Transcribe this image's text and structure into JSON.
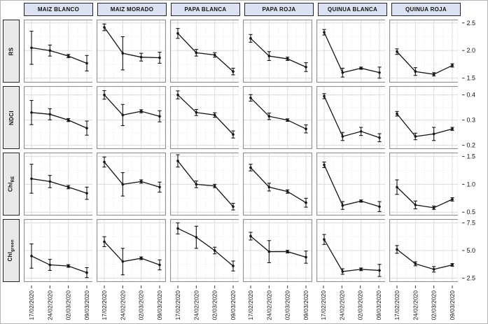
{
  "chart_data": {
    "type": "line",
    "description": "Faceted grid of vegetation index time series with error bars per crop",
    "facet_columns": [
      "MAIZ BLANCO",
      "MAIZ MORADO",
      "PAPA BLANCA",
      "PAPA ROJA",
      "QUINUA BLANCA",
      "QUINUA ROJA"
    ],
    "x_categories": [
      "17/02/2020",
      "24/02/2020",
      "02/03/2020",
      "09/03/2020"
    ],
    "legend": "none",
    "grid": "on",
    "facet_rows": [
      {
        "label": "RS",
        "label_sub": "",
        "y_ticks": [
          "1.5",
          "2.0",
          "2.5"
        ],
        "ylim": [
          1.42,
          2.56
        ],
        "panels": [
          {
            "column": "MAIZ BLANCO",
            "means": [
              2.05,
              2.0,
              1.9,
              1.77
            ],
            "errors": [
              0.3,
              0.1,
              0.03,
              0.14
            ]
          },
          {
            "column": "MAIZ MORADO",
            "means": [
              2.42,
              1.95,
              1.88,
              1.87
            ],
            "errors": [
              0.06,
              0.3,
              0.07,
              0.1
            ]
          },
          {
            "column": "PAPA BLANCA",
            "means": [
              2.31,
              1.96,
              1.92,
              1.62
            ],
            "errors": [
              0.09,
              0.06,
              0.04,
              0.06
            ]
          },
          {
            "column": "PAPA ROJA",
            "means": [
              2.22,
              1.9,
              1.85,
              1.7
            ],
            "errors": [
              0.07,
              0.08,
              0.03,
              0.08
            ]
          },
          {
            "column": "QUINUA BLANCA",
            "means": [
              2.33,
              1.6,
              1.68,
              1.6
            ],
            "errors": [
              0.05,
              0.08,
              0.02,
              0.1
            ]
          },
          {
            "column": "QUINUA ROJA",
            "means": [
              1.98,
              1.62,
              1.57,
              1.73
            ],
            "errors": [
              0.05,
              0.07,
              0.03,
              0.03
            ]
          }
        ]
      },
      {
        "label": "NDCI",
        "label_sub": "",
        "y_ticks": [
          "0.2",
          "0.3",
          "0.4"
        ],
        "ylim": [
          0.185,
          0.435
        ],
        "panels": [
          {
            "column": "MAIZ BLANCO",
            "means": [
              0.33,
              0.323,
              0.3,
              0.268
            ],
            "errors": [
              0.048,
              0.022,
              0.006,
              0.028
            ]
          },
          {
            "column": "MAIZ MORADO",
            "means": [
              0.4,
              0.32,
              0.335,
              0.315
            ],
            "errors": [
              0.017,
              0.042,
              0.006,
              0.022
            ]
          },
          {
            "column": "PAPA BLANCA",
            "means": [
              0.4,
              0.33,
              0.32,
              0.243
            ],
            "errors": [
              0.016,
              0.012,
              0.009,
              0.014
            ]
          },
          {
            "column": "PAPA ROJA",
            "means": [
              0.388,
              0.315,
              0.3,
              0.265
            ],
            "errors": [
              0.013,
              0.013,
              0.005,
              0.016
            ]
          },
          {
            "column": "QUINUA BLANCA",
            "means": [
              0.395,
              0.235,
              0.255,
              0.23
            ],
            "errors": [
              0.01,
              0.016,
              0.016,
              0.016
            ]
          },
          {
            "column": "QUINUA ROJA",
            "means": [
              0.325,
              0.235,
              0.245,
              0.265
            ],
            "errors": [
              0.009,
              0.013,
              0.026,
              0.006
            ]
          }
        ]
      },
      {
        "label": "Chl",
        "label_sub": "RE",
        "y_ticks": [
          "0.5",
          "1.0",
          "1.5"
        ],
        "ylim": [
          0.44,
          1.57
        ],
        "panels": [
          {
            "column": "MAIZ BLANCO",
            "means": [
              1.1,
              1.05,
              0.95,
              0.84
            ],
            "errors": [
              0.26,
              0.11,
              0.03,
              0.11
            ]
          },
          {
            "column": "MAIZ MORADO",
            "means": [
              1.4,
              1.0,
              1.05,
              0.95
            ],
            "errors": [
              0.09,
              0.21,
              0.03,
              0.09
            ]
          },
          {
            "column": "PAPA BLANCA",
            "means": [
              1.42,
              1.0,
              0.97,
              0.6
            ],
            "errors": [
              0.11,
              0.06,
              0.03,
              0.06
            ]
          },
          {
            "column": "PAPA ROJA",
            "means": [
              1.3,
              0.95,
              0.87,
              0.67
            ],
            "errors": [
              0.06,
              0.07,
              0.03,
              0.08
            ]
          },
          {
            "column": "QUINUA BLANCA",
            "means": [
              1.35,
              0.62,
              0.7,
              0.6
            ],
            "errors": [
              0.05,
              0.07,
              0.02,
              0.09
            ]
          },
          {
            "column": "QUINUA ROJA",
            "means": [
              0.95,
              0.63,
              0.58,
              0.73
            ],
            "errors": [
              0.13,
              0.07,
              0.03,
              0.03
            ]
          }
        ]
      },
      {
        "label": "Chl",
        "label_sub": "green",
        "y_ticks": [
          "2.5",
          "5.0",
          "7.5"
        ],
        "ylim": [
          2.15,
          7.85
        ],
        "panels": [
          {
            "column": "MAIZ BLANCO",
            "means": [
              4.5,
              3.7,
              3.6,
              3.0
            ],
            "errors": [
              1.1,
              0.5,
              0.12,
              0.45
            ]
          },
          {
            "column": "MAIZ MORADO",
            "means": [
              5.8,
              4.0,
              4.3,
              3.7
            ],
            "errors": [
              0.45,
              1.2,
              0.12,
              0.45
            ]
          },
          {
            "column": "PAPA BLANCA",
            "means": [
              7.0,
              6.2,
              5.0,
              3.6
            ],
            "errors": [
              0.5,
              1.0,
              0.3,
              0.45
            ]
          },
          {
            "column": "PAPA ROJA",
            "means": [
              6.3,
              4.9,
              4.9,
              4.4
            ],
            "errors": [
              0.35,
              1.0,
              0.12,
              0.55
            ]
          },
          {
            "column": "QUINUA BLANCA",
            "means": [
              6.0,
              3.1,
              3.3,
              3.2
            ],
            "errors": [
              0.45,
              0.25,
              0.12,
              0.55
            ]
          },
          {
            "column": "QUINUA ROJA",
            "means": [
              5.1,
              3.8,
              3.3,
              3.7
            ],
            "errors": [
              0.35,
              0.18,
              0.25,
              0.12
            ]
          }
        ]
      }
    ],
    "style": {
      "strip_bg": "#dce2f1",
      "strip_border": "#23232d",
      "row_strip_bg": "#e9e9e9",
      "panel_border": "#8f8f8f",
      "grid_major": "#dcdcdc",
      "grid_minor": "#ebebeb",
      "line_color": "#141414",
      "tick_color": "#333333"
    }
  }
}
